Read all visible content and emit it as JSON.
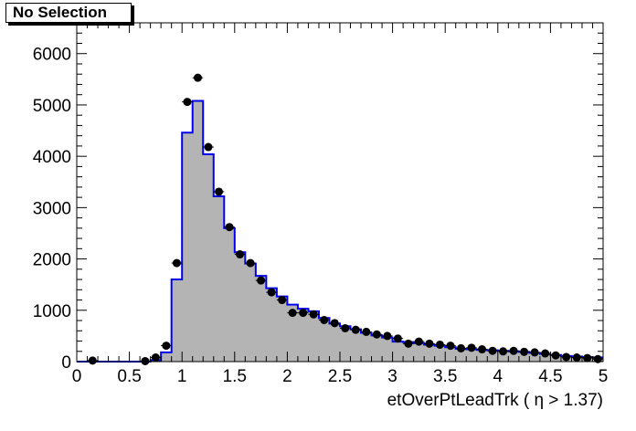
{
  "legend": {
    "label": "No Selection"
  },
  "chart_data": {
    "type": "histogram",
    "xlabel": "etOverPtLeadTrk ( η > 1.37)",
    "ylabel": "",
    "title": "",
    "xlim": [
      0,
      5
    ],
    "ylim": [
      0,
      6600
    ],
    "x_ticks": [
      0,
      0.5,
      1,
      1.5,
      2,
      2.5,
      3,
      3.5,
      4,
      4.5,
      5
    ],
    "x_tick_labels": [
      "0",
      "0.5",
      "1",
      "1.5",
      "2",
      "2.5",
      "3",
      "3.5",
      "4",
      "4.5",
      "5"
    ],
    "y_ticks": [
      0,
      1000,
      2000,
      3000,
      4000,
      5000,
      6000
    ],
    "y_tick_labels": [
      "0",
      "1000",
      "2000",
      "3000",
      "4000",
      "5000",
      "6000"
    ],
    "bin_edges": [
      0,
      0.1,
      0.2,
      0.3,
      0.4,
      0.5,
      0.6,
      0.7,
      0.8,
      0.9,
      1.0,
      1.1,
      1.2,
      1.3,
      1.4,
      1.5,
      1.6,
      1.7,
      1.8,
      1.9,
      2.0,
      2.1,
      2.2,
      2.3,
      2.4,
      2.5,
      2.6,
      2.7,
      2.8,
      2.9,
      3.0,
      3.1,
      3.2,
      3.3,
      3.4,
      3.5,
      3.6,
      3.7,
      3.8,
      3.9,
      4.0,
      4.1,
      4.2,
      4.3,
      4.4,
      4.5,
      4.6,
      4.7,
      4.8,
      4.9,
      5.0
    ],
    "series": [
      {
        "kind": "filled-histogram",
        "fill_color": "#b4b4b4",
        "line_color": "#0000ee",
        "values": [
          0,
          0,
          0,
          0,
          0,
          0,
          0,
          30,
          180,
          1600,
          4460,
          5080,
          4040,
          3220,
          2600,
          2130,
          1910,
          1670,
          1430,
          1270,
          1110,
          1030,
          980,
          850,
          740,
          690,
          630,
          560,
          510,
          470,
          390,
          380,
          360,
          330,
          310,
          280,
          250,
          240,
          230,
          220,
          210,
          200,
          190,
          170,
          150,
          130,
          110,
          100,
          90,
          80
        ]
      },
      {
        "kind": "points",
        "color": "#000000",
        "x": [
          0.15,
          0.65,
          0.75,
          0.85,
          0.95,
          1.05,
          1.15,
          1.25,
          1.35,
          1.45,
          1.55,
          1.65,
          1.75,
          1.85,
          1.95,
          2.05,
          2.15,
          2.25,
          2.35,
          2.45,
          2.55,
          2.65,
          2.75,
          2.85,
          2.95,
          3.05,
          3.15,
          3.25,
          3.35,
          3.45,
          3.55,
          3.65,
          3.75,
          3.85,
          3.95,
          4.05,
          4.15,
          4.25,
          4.35,
          4.45,
          4.55,
          4.65,
          4.75,
          4.85,
          4.95
        ],
        "y": [
          20,
          10,
          80,
          310,
          1920,
          5060,
          5530,
          4180,
          3310,
          2620,
          2090,
          1920,
          1580,
          1350,
          1200,
          950,
          950,
          920,
          810,
          750,
          650,
          620,
          580,
          530,
          500,
          450,
          350,
          390,
          350,
          330,
          310,
          260,
          270,
          240,
          210,
          200,
          210,
          190,
          180,
          160,
          120,
          90,
          80,
          70,
          50
        ]
      }
    ]
  }
}
